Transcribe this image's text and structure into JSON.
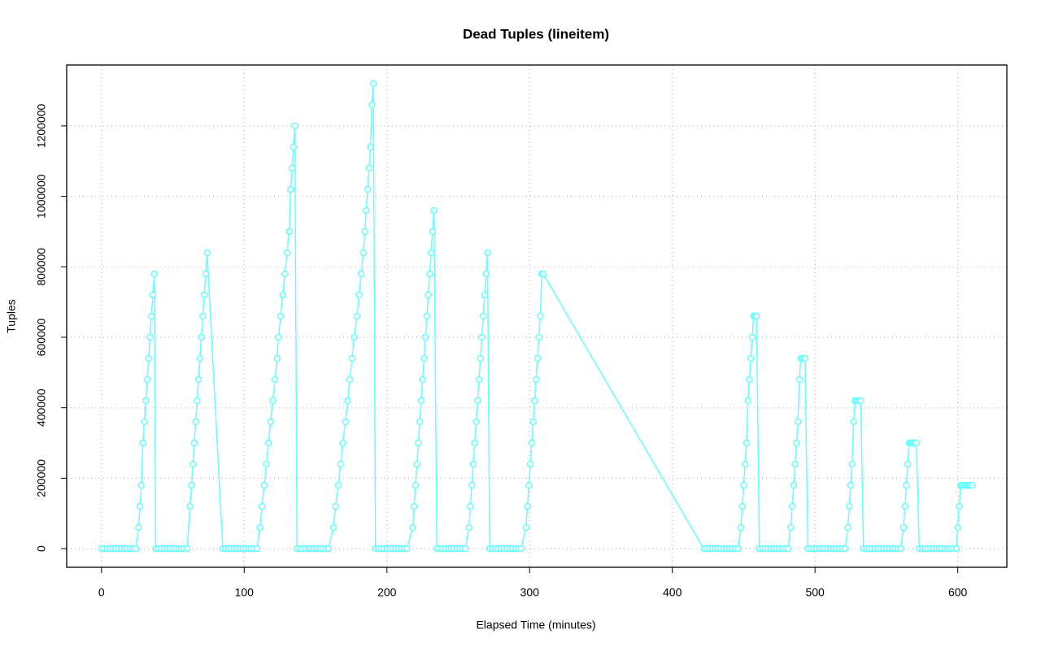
{
  "chart_data": {
    "type": "line",
    "title": "Dead Tuples (lineitem)",
    "x_label": "Elapsed Time (minutes)",
    "y_label": "Tuples",
    "color": "#66ffff",
    "grid": true,
    "markers": true,
    "xlim": [
      -24.4,
      634.4
    ],
    "ylim": [
      -52800,
      1372800
    ],
    "xticks": [
      0,
      100,
      200,
      300,
      400,
      500,
      600
    ],
    "yticks": [
      0,
      200000,
      400000,
      600000,
      800000,
      1000000,
      1200000
    ],
    "x": [
      0,
      2,
      4,
      6,
      8,
      10,
      12,
      14,
      16,
      18,
      20,
      22,
      24,
      26,
      27,
      28,
      29,
      30,
      31,
      32,
      33,
      34,
      35,
      36,
      37,
      38,
      40,
      42,
      44,
      46,
      48,
      50,
      52,
      54,
      56,
      58,
      60,
      62,
      63,
      64,
      65,
      66,
      67,
      68,
      69,
      70,
      71,
      72,
      73,
      74,
      85,
      87,
      89,
      91,
      93,
      95,
      97,
      99,
      101,
      103,
      105,
      107,
      109,
      111,
      112.5,
      114,
      115.5,
      117,
      118.5,
      120,
      121.5,
      123,
      124,
      125.5,
      127,
      128.5,
      130,
      131.5,
      132.5,
      133.5,
      134.5,
      135.5,
      137,
      139,
      141,
      143,
      145,
      147,
      149,
      151,
      153,
      155,
      157,
      159,
      162.5,
      164,
      166,
      167.5,
      169,
      171,
      172.5,
      174,
      175.5,
      177,
      179,
      180.5,
      182,
      183.5,
      184.5,
      185.5,
      186.5,
      187.5,
      188.5,
      189.5,
      190.5,
      192,
      194,
      196,
      198,
      200,
      202,
      204,
      206,
      208,
      210,
      212,
      214,
      218,
      219,
      220,
      221,
      222,
      223,
      224,
      225,
      226,
      227,
      228,
      229,
      230,
      231,
      232,
      233,
      235,
      237,
      239,
      241,
      243,
      245,
      247,
      249,
      251,
      253,
      255,
      257.5,
      258.5,
      259.5,
      260.5,
      261.5,
      262.5,
      263.5,
      264.5,
      265.5,
      266.5,
      267.5,
      268.5,
      269.5,
      270.5,
      272,
      274,
      276,
      278,
      280,
      282,
      284,
      286,
      288,
      290,
      292,
      294,
      297.5,
      298.5,
      299.5,
      300.5,
      301.5,
      302.5,
      303.5,
      304.5,
      305.5,
      306.5,
      307.5,
      308.5,
      309.5,
      422,
      424,
      426,
      428,
      430,
      432,
      434,
      436,
      438,
      440,
      442,
      444,
      446,
      448,
      449,
      450,
      451,
      452,
      453,
      454,
      455,
      456,
      457,
      458,
      459,
      461,
      463,
      465,
      467,
      469,
      471,
      473,
      475,
      477,
      479,
      481,
      483,
      484,
      485,
      486,
      487,
      488,
      489,
      490,
      491,
      492,
      493,
      495,
      497,
      499,
      501,
      503,
      505,
      507,
      509,
      511,
      513,
      515,
      517,
      519,
      521,
      523,
      524,
      525,
      526,
      527,
      528,
      529,
      530,
      531,
      532,
      534,
      536,
      538,
      540,
      542,
      544,
      546,
      548,
      550,
      552,
      554,
      556,
      558,
      560,
      562,
      563,
      564,
      565,
      566,
      567,
      568,
      569,
      570,
      571,
      573,
      575,
      577,
      579,
      581,
      583,
      585,
      587,
      589,
      591,
      593,
      595,
      597,
      599,
      600,
      601,
      602,
      603,
      604,
      605,
      606,
      607,
      608,
      609,
      610
    ],
    "values": [
      0,
      0,
      0,
      0,
      0,
      0,
      0,
      0,
      0,
      0,
      0,
      0,
      0,
      60000,
      120000,
      180000,
      300000,
      360000,
      420000,
      480000,
      540000,
      600000,
      660000,
      720000,
      780000,
      0,
      0,
      0,
      0,
      0,
      0,
      0,
      0,
      0,
      0,
      0,
      0,
      120000,
      180000,
      240000,
      300000,
      360000,
      420000,
      480000,
      540000,
      600000,
      660000,
      720000,
      780000,
      840000,
      0,
      0,
      0,
      0,
      0,
      0,
      0,
      0,
      0,
      0,
      0,
      0,
      0,
      60000,
      120000,
      180000,
      240000,
      300000,
      360000,
      420000,
      480000,
      540000,
      600000,
      660000,
      720000,
      780000,
      840000,
      900000,
      1020000,
      1080000,
      1140000,
      1200000,
      0,
      0,
      0,
      0,
      0,
      0,
      0,
      0,
      0,
      0,
      0,
      0,
      60000,
      120000,
      180000,
      240000,
      300000,
      360000,
      420000,
      480000,
      540000,
      600000,
      660000,
      720000,
      780000,
      840000,
      900000,
      960000,
      1020000,
      1080000,
      1140000,
      1260000,
      1320000,
      0,
      0,
      0,
      0,
      0,
      0,
      0,
      0,
      0,
      0,
      0,
      0,
      60000,
      120000,
      180000,
      240000,
      300000,
      360000,
      420000,
      480000,
      540000,
      600000,
      660000,
      720000,
      780000,
      840000,
      900000,
      960000,
      0,
      0,
      0,
      0,
      0,
      0,
      0,
      0,
      0,
      0,
      0,
      60000,
      120000,
      180000,
      240000,
      300000,
      360000,
      420000,
      480000,
      540000,
      600000,
      660000,
      720000,
      780000,
      840000,
      0,
      0,
      0,
      0,
      0,
      0,
      0,
      0,
      0,
      0,
      0,
      0,
      60000,
      120000,
      180000,
      240000,
      300000,
      360000,
      420000,
      480000,
      540000,
      600000,
      660000,
      780000,
      780000,
      0,
      0,
      0,
      0,
      0,
      0,
      0,
      0,
      0,
      0,
      0,
      0,
      0,
      60000,
      120000,
      180000,
      240000,
      300000,
      420000,
      480000,
      540000,
      600000,
      660000,
      660000,
      660000,
      0,
      0,
      0,
      0,
      0,
      0,
      0,
      0,
      0,
      0,
      0,
      60000,
      120000,
      180000,
      240000,
      300000,
      360000,
      480000,
      540000,
      540000,
      540000,
      540000,
      0,
      0,
      0,
      0,
      0,
      0,
      0,
      0,
      0,
      0,
      0,
      0,
      0,
      0,
      60000,
      120000,
      180000,
      240000,
      360000,
      420000,
      420000,
      420000,
      420000,
      420000,
      0,
      0,
      0,
      0,
      0,
      0,
      0,
      0,
      0,
      0,
      0,
      0,
      0,
      0,
      60000,
      120000,
      180000,
      240000,
      300000,
      300000,
      300000,
      300000,
      300000,
      300000,
      0,
      0,
      0,
      0,
      0,
      0,
      0,
      0,
      0,
      0,
      0,
      0,
      0,
      0,
      60000,
      120000,
      180000,
      180000,
      180000,
      180000,
      180000,
      180000,
      180000,
      180000,
      180000
    ]
  }
}
